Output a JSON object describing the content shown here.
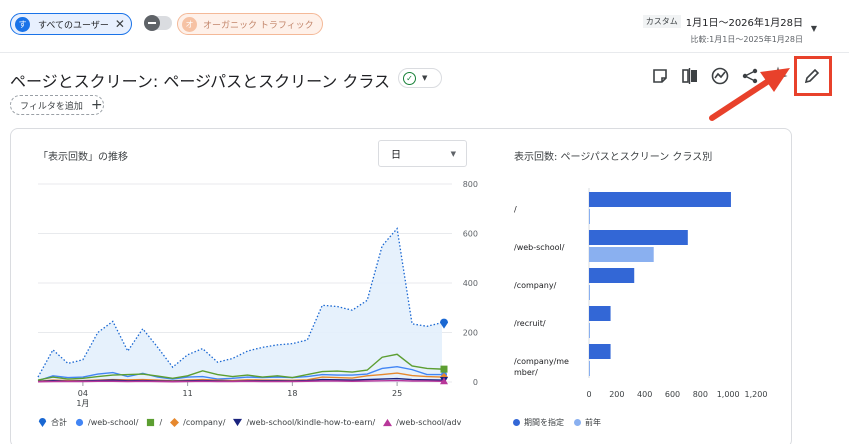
{
  "filters": {
    "user_avatar": "す",
    "user_chip": "すべてのユーザー",
    "organic_avatar": "オ",
    "organic_chip": "オーガニック トラフィック"
  },
  "date": {
    "badge": "カスタム",
    "range": "1月1日～2026年1月28日",
    "compare": "比較:1月1日～2025年1月28日"
  },
  "title": "ページとスクリーン: ページパスとスクリーン クラス",
  "filter_add": "フィルタを追加",
  "toolbar_icons": [
    "compare-icon",
    "insights-icon",
    "share-icon",
    "sparkle-icon",
    "edit-icon"
  ],
  "line_chart": {
    "title": "「表示回数」の推移",
    "granularity": "日",
    "yticks": [
      "800",
      "600",
      "400",
      "200",
      "0"
    ],
    "xticks": [
      "04",
      "11",
      "18",
      "25"
    ],
    "xmonth": "1月",
    "legend": [
      {
        "label": "合計",
        "color": "#1967d2",
        "shape": "drop"
      },
      {
        "label": "/web-school/",
        "color": "#4285f4",
        "shape": "dot"
      },
      {
        "label": "/",
        "color": "#5c9e31",
        "shape": "square"
      },
      {
        "label": "/company/",
        "color": "#e6882d",
        "shape": "diamond"
      },
      {
        "label": "/web-school/kindle-how-to-earn/",
        "color": "#1a237e",
        "shape": "tri-down"
      },
      {
        "label": "/web-school/adv",
        "color": "#b8379a",
        "shape": "tri-up"
      }
    ]
  },
  "bar_chart_title": "表示回数: ページパスとスクリーン クラス別",
  "bar_legend": [
    {
      "label": "期間を指定",
      "color": "#3367d6"
    },
    {
      "label": "前年",
      "color": "#8ab0f0"
    }
  ],
  "chart_data": [
    {
      "type": "line",
      "title": "「表示回数」の推移",
      "x": [
        "1/1",
        "1/2",
        "1/3",
        "1/4",
        "1/5",
        "1/6",
        "1/7",
        "1/8",
        "1/9",
        "1/10",
        "1/11",
        "1/12",
        "1/13",
        "1/14",
        "1/15",
        "1/16",
        "1/17",
        "1/18",
        "1/19",
        "1/20",
        "1/21",
        "1/22",
        "1/23",
        "1/24",
        "1/25",
        "1/26",
        "1/27",
        "1/28"
      ],
      "ylim": [
        0,
        800
      ],
      "series": [
        {
          "name": "合計",
          "values": [
            20,
            130,
            75,
            90,
            200,
            245,
            125,
            215,
            140,
            60,
            110,
            135,
            80,
            95,
            125,
            140,
            150,
            155,
            170,
            310,
            305,
            290,
            330,
            550,
            620,
            235,
            225,
            240
          ]
        },
        {
          "name": "/web-school/",
          "values": [
            5,
            25,
            18,
            20,
            32,
            38,
            22,
            35,
            20,
            12,
            20,
            22,
            12,
            15,
            20,
            18,
            20,
            18,
            22,
            30,
            28,
            28,
            32,
            55,
            62,
            50,
            30,
            30
          ]
        },
        {
          "name": "/",
          "values": [
            8,
            20,
            12,
            15,
            22,
            28,
            30,
            32,
            24,
            15,
            25,
            45,
            30,
            22,
            28,
            20,
            25,
            18,
            30,
            42,
            44,
            40,
            48,
            100,
            112,
            65,
            55,
            52
          ]
        },
        {
          "name": "/company/",
          "values": [
            3,
            8,
            6,
            6,
            8,
            10,
            9,
            10,
            8,
            5,
            8,
            10,
            8,
            6,
            9,
            8,
            8,
            7,
            9,
            20,
            18,
            16,
            25,
            30,
            36,
            26,
            22,
            20
          ]
        },
        {
          "name": "/web-school/kindle-how-to-earn/",
          "values": [
            2,
            5,
            3,
            4,
            6,
            8,
            5,
            6,
            4,
            3,
            5,
            6,
            4,
            3,
            5,
            5,
            5,
            4,
            6,
            10,
            9,
            8,
            10,
            12,
            14,
            10,
            9,
            8
          ]
        },
        {
          "name": "/web-school/adv",
          "values": [
            1,
            2,
            2,
            2,
            3,
            3,
            2,
            3,
            2,
            1,
            2,
            3,
            2,
            2,
            3,
            2,
            2,
            2,
            3,
            4,
            4,
            3,
            4,
            5,
            6,
            4,
            4,
            3
          ]
        }
      ]
    },
    {
      "type": "bar",
      "title": "表示回数: ページパスとスクリーン クラス別",
      "orientation": "horizontal",
      "categories": [
        "/",
        "/web-school/",
        "/company/",
        "/recruit/",
        "/company/member/"
      ],
      "category_labels": [
        [
          "/"
        ],
        [
          "/web-school/"
        ],
        [
          "/company/"
        ],
        [
          "/recruit/"
        ],
        [
          "/company/me",
          "mber/"
        ]
      ],
      "xticks": [
        "0",
        "200",
        "400",
        "600",
        "800",
        "1,000",
        "1,200"
      ],
      "xlim": [
        0,
        1200
      ],
      "series": [
        {
          "name": "期間を指定",
          "values": [
            1020,
            710,
            325,
            155,
            155
          ]
        },
        {
          "name": "前年",
          "values": [
            2,
            465,
            2,
            2,
            2
          ]
        }
      ]
    }
  ]
}
